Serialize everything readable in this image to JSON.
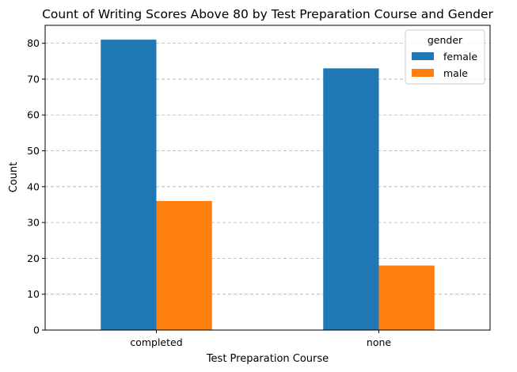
{
  "chart_data": {
    "type": "bar",
    "title": "Count of Writing Scores Above 80 by Test Preparation Course and Gender",
    "xlabel": "Test Preparation Course",
    "ylabel": "Count",
    "categories": [
      "completed",
      "none"
    ],
    "series": [
      {
        "name": "female",
        "color": "#1f77b4",
        "values": [
          81,
          73
        ]
      },
      {
        "name": "male",
        "color": "#ff7f0e",
        "values": [
          36,
          18
        ]
      }
    ],
    "ylim": [
      0,
      85
    ],
    "yticks": [
      "0",
      "10",
      "20",
      "30",
      "40",
      "50",
      "60",
      "70",
      "80"
    ],
    "grid": "y-dashed",
    "legend": {
      "title": "gender",
      "placement": "top-right"
    }
  }
}
